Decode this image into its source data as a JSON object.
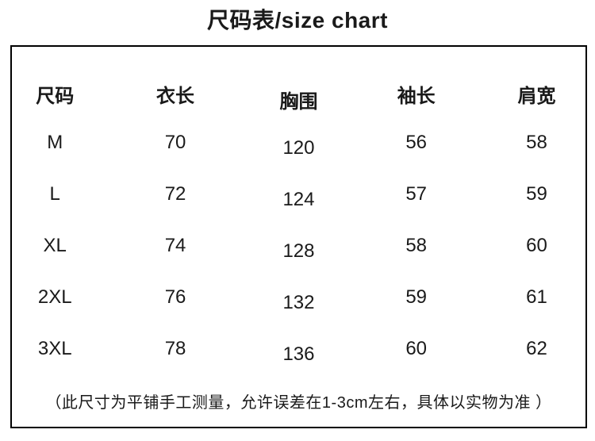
{
  "page": {
    "background": "#ffffff",
    "text_color": "#1a1a1a",
    "border_color": "#000000"
  },
  "chart_data": {
    "type": "table",
    "title": "尺码表/size chart",
    "columns": [
      "尺码",
      "衣长",
      "胸围",
      "袖长",
      "肩宽"
    ],
    "rows": [
      [
        "M",
        "70",
        "120",
        "56",
        "58"
      ],
      [
        "L",
        "72",
        "124",
        "57",
        "59"
      ],
      [
        "XL",
        "74",
        "128",
        "58",
        "60"
      ],
      [
        "2XL",
        "76",
        "132",
        "59",
        "61"
      ],
      [
        "3XL",
        "78",
        "136",
        "60",
        "62"
      ]
    ],
    "note": "（此尺寸为平铺手工测量，允许误差在1-3cm左右，具体以实物为准 ）",
    "layout": {
      "grid": "outer-border-only",
      "header_position": "top",
      "units_implied": "cm"
    }
  }
}
